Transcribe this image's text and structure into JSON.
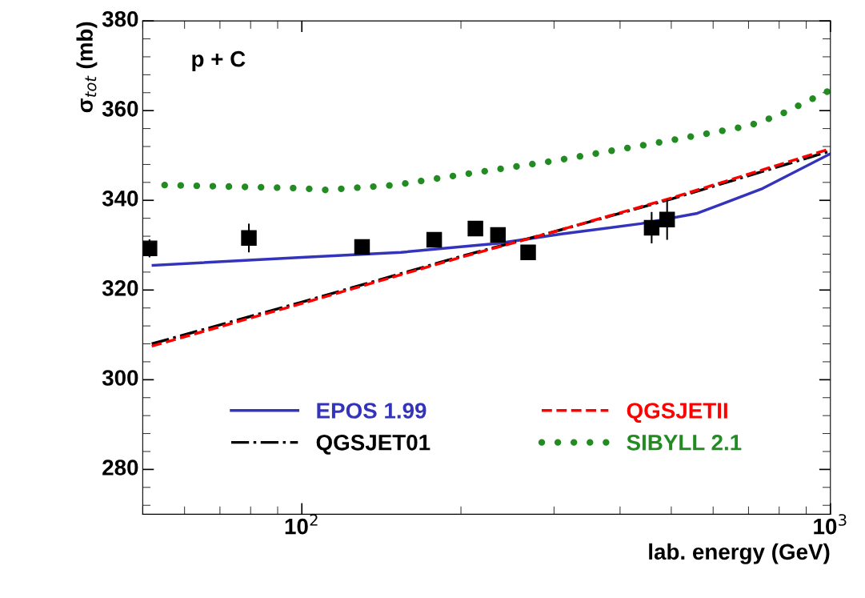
{
  "chart_data": {
    "type": "line",
    "xlabel": "lab. energy (GeV)",
    "ylabel": "σ$_{tot}$ (mb)",
    "log": "x",
    "xlim": [
      50,
      1000
    ],
    "ylim": [
      270,
      380
    ],
    "xticks": [
      {
        "value": 100,
        "label": "10$^{2}$"
      },
      {
        "value": 1000,
        "label": "10$^{3}$"
      }
    ],
    "yticks": [
      280,
      300,
      320,
      340,
      360,
      380
    ],
    "grid": false,
    "legend": "bottom",
    "annotations": [
      "p + C"
    ],
    "series": [
      {
        "type": "scatter",
        "color": "#000000",
        "marker": "square",
        "x": [
          51.5,
          79.4,
          130,
          178,
          213,
          235,
          268,
          459,
          491
        ],
        "values": [
          329.3,
          331.6,
          329.6,
          331.2,
          333.7,
          332.3,
          328.4,
          333.9,
          335.7
        ],
        "errors": [
          2,
          3.2,
          1,
          1,
          1,
          1,
          1.5,
          3.5,
          4.5
        ]
      },
      {
        "name": "EPOS 1.99",
        "color": "#3333bb",
        "line_style": "solid",
        "x": [
          52.3,
          100,
          154,
          235,
          310,
          438,
          560,
          740,
          1000
        ],
        "values": [
          325.5,
          327.3,
          328.4,
          330.4,
          332.5,
          334.8,
          337.1,
          342.5,
          350.4
        ]
      },
      {
        "name": "QGSJET01",
        "color": "#000000",
        "line_style": "dashdot",
        "x": [
          52,
          100,
          200,
          300,
          500,
          1000
        ],
        "values": [
          308,
          317.3,
          327.5,
          333,
          340.3,
          351
        ]
      },
      {
        "name": "QGSJETII",
        "color": "#ff0000",
        "line_style": "dashed",
        "x": [
          52,
          100,
          200,
          300,
          500,
          1000
        ],
        "values": [
          307.5,
          317,
          327.3,
          333,
          340.5,
          351.5
        ]
      },
      {
        "name": "SIBYLL 2.1",
        "color": "#228b22",
        "line_style": "dotted",
        "x": [
          55,
          100,
          110,
          150,
          200,
          300,
          500,
          700,
          800,
          1000
        ],
        "values": [
          343.4,
          342.7,
          342.3,
          343.4,
          345.7,
          348.8,
          353.4,
          356.6,
          359,
          364.6
        ]
      }
    ]
  }
}
